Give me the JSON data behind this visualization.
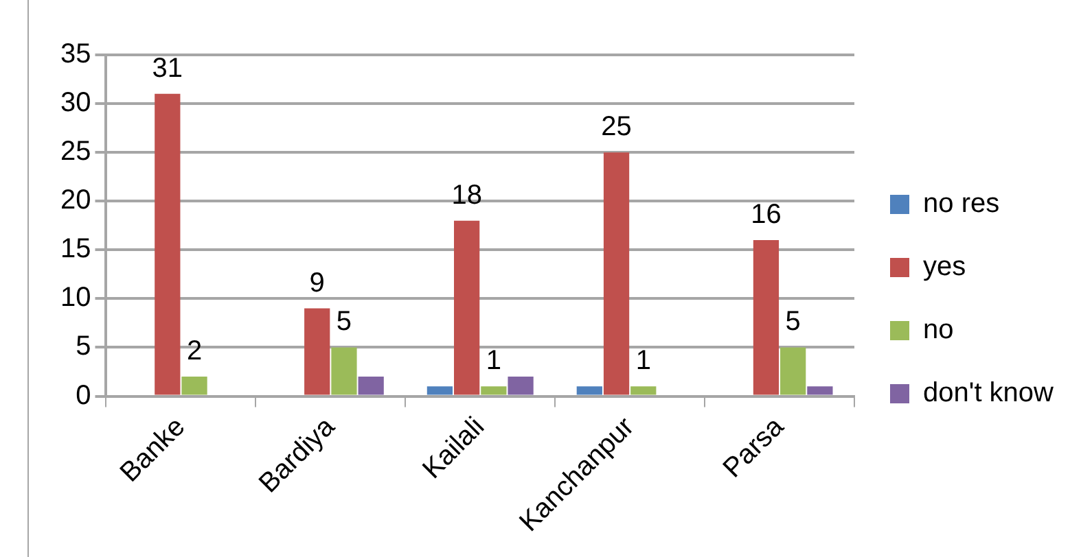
{
  "chart_data": {
    "type": "bar",
    "categories": [
      "Banke",
      "Bardiya",
      "Kailali",
      "Kanchanpur",
      "Parsa"
    ],
    "series": [
      {
        "name": "no res",
        "color": "#4f81bd",
        "values": [
          0,
          0,
          1,
          1,
          0
        ]
      },
      {
        "name": "yes",
        "color": "#c0504d",
        "values": [
          31,
          9,
          18,
          25,
          16
        ],
        "value_labels": [
          "31",
          "9",
          "18",
          "25",
          "16"
        ]
      },
      {
        "name": "no",
        "color": "#9bbb59",
        "values": [
          2,
          5,
          1,
          1,
          5
        ],
        "value_labels": [
          "2",
          "5",
          "1",
          "1",
          "5"
        ]
      },
      {
        "name": "don't know",
        "color": "#8064a2",
        "values": [
          0,
          2,
          2,
          0,
          1
        ]
      }
    ],
    "ylim": [
      0,
      35
    ],
    "yticks": [
      0,
      5,
      10,
      15,
      20,
      25,
      30,
      35
    ],
    "grid": "y",
    "legend": "right"
  }
}
